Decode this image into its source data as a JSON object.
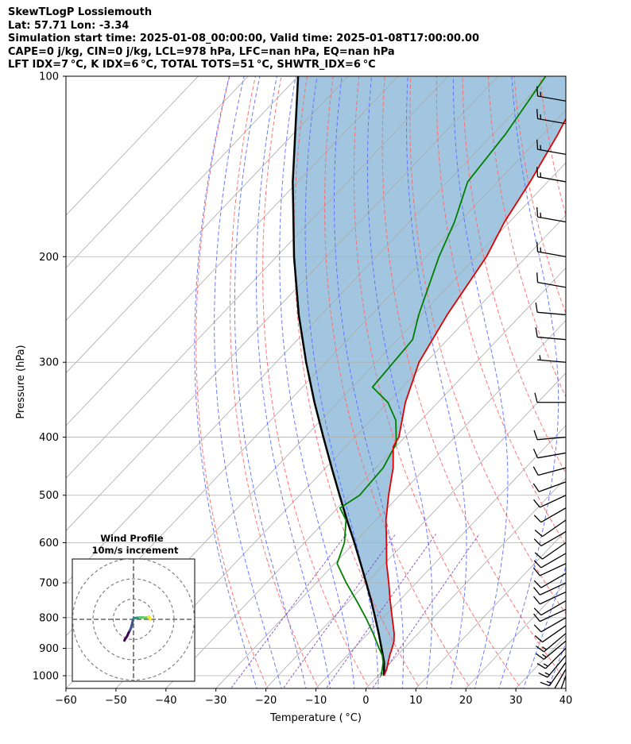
{
  "header": {
    "line1": "SkewTLogP Lossiemouth",
    "line2": "Lat: 57.71   Lon: -3.34",
    "line3": "Simulation start time: 2025-01-08_00:00:00, Valid time: 2025-01-08T17:00:00.00",
    "line4": "CAPE=0 j/kg, CIN=0 j/kg, LCL=978 hPa, LFC=nan hPa, EQ=nan hPa",
    "line5": "LFT IDX=7 °C, K IDX=6 °C, TOTAL TOTS=51 °C, SHWTR_IDX=6 °C"
  },
  "chart_data": {
    "type": "skew-t log-p",
    "xlabel": "Temperature ( °C)",
    "ylabel": "Pressure (hPa)",
    "xlim": [
      -60,
      40
    ],
    "ylim": [
      1050,
      100
    ],
    "y_scale": "log",
    "x_ticks": [
      -60,
      -50,
      -40,
      -30,
      -20,
      -10,
      0,
      10,
      20,
      30,
      40
    ],
    "x_tick_labels": [
      "−60",
      "−50",
      "−40",
      "−30",
      "−20",
      "−10",
      "0",
      "10",
      "20",
      "30",
      "40"
    ],
    "y_ticks": [
      1000,
      900,
      800,
      700,
      600,
      500,
      400,
      300,
      200,
      100
    ],
    "y_tick_labels": [
      "1000",
      "900",
      "800",
      "700",
      "600",
      "500",
      "400",
      "300",
      "200",
      "100"
    ],
    "grid": true,
    "colors": {
      "temperature": "#e00000",
      "dewpoint": "#008000",
      "parcel": "#000000",
      "shade": "#a2c6df",
      "dry_adiabat": "#ff6666",
      "moist_adiabat": "#5a6dff",
      "isotherm": "#aaaaaa",
      "mixing_ratio": "#7b3fbf",
      "barb": "#000000"
    },
    "temperature_profile": [
      {
        "p": 1000,
        "t": 1.2
      },
      {
        "p": 975,
        "t": 0.5
      },
      {
        "p": 950,
        "t": -0.5
      },
      {
        "p": 925,
        "t": -1.5
      },
      {
        "p": 900,
        "t": -2.4
      },
      {
        "p": 875,
        "t": -3.4
      },
      {
        "p": 850,
        "t": -4.8
      },
      {
        "p": 800,
        "t": -8.2
      },
      {
        "p": 750,
        "t": -11.8
      },
      {
        "p": 700,
        "t": -15.5
      },
      {
        "p": 650,
        "t": -19.6
      },
      {
        "p": 600,
        "t": -23.6
      },
      {
        "p": 550,
        "t": -28.0
      },
      {
        "p": 500,
        "t": -32.2
      },
      {
        "p": 450,
        "t": -36.5
      },
      {
        "p": 415,
        "t": -40.5
      },
      {
        "p": 400,
        "t": -41.2
      },
      {
        "p": 350,
        "t": -46.5
      },
      {
        "p": 300,
        "t": -51.4
      },
      {
        "p": 250,
        "t": -54.8
      },
      {
        "p": 200,
        "t": -58.0
      },
      {
        "p": 175,
        "t": -61.0
      },
      {
        "p": 150,
        "t": -63.5
      },
      {
        "p": 125,
        "t": -67.0
      },
      {
        "p": 100,
        "t": -72.0
      }
    ],
    "dewpoint_profile": [
      {
        "p": 1000,
        "t": 0.6
      },
      {
        "p": 975,
        "t": -0.4
      },
      {
        "p": 950,
        "t": -1.5
      },
      {
        "p": 925,
        "t": -3.0
      },
      {
        "p": 900,
        "t": -5.0
      },
      {
        "p": 850,
        "t": -9.0
      },
      {
        "p": 800,
        "t": -13.5
      },
      {
        "p": 750,
        "t": -18.5
      },
      {
        "p": 700,
        "t": -24.0
      },
      {
        "p": 650,
        "t": -29.5
      },
      {
        "p": 600,
        "t": -32.0
      },
      {
        "p": 550,
        "t": -36.0
      },
      {
        "p": 525,
        "t": -39.5
      },
      {
        "p": 500,
        "t": -38.0
      },
      {
        "p": 450,
        "t": -38.5
      },
      {
        "p": 410,
        "t": -40.5
      },
      {
        "p": 375,
        "t": -45.0
      },
      {
        "p": 350,
        "t": -50.0
      },
      {
        "p": 330,
        "t": -56.0
      },
      {
        "p": 300,
        "t": -56.5
      },
      {
        "p": 275,
        "t": -57.0
      },
      {
        "p": 250,
        "t": -60.5
      },
      {
        "p": 200,
        "t": -67.5
      },
      {
        "p": 175,
        "t": -71.0
      },
      {
        "p": 150,
        "t": -76.0
      },
      {
        "p": 125,
        "t": -77.5
      },
      {
        "p": 100,
        "t": -80.5
      }
    ],
    "parcel_profile": [
      {
        "p": 1000,
        "t": 1.2
      },
      {
        "p": 978,
        "t": 0.1
      },
      {
        "p": 950,
        "t": -1.3
      },
      {
        "p": 900,
        "t": -4.5
      },
      {
        "p": 850,
        "t": -7.9
      },
      {
        "p": 800,
        "t": -11.6
      },
      {
        "p": 750,
        "t": -15.6
      },
      {
        "p": 700,
        "t": -20.0
      },
      {
        "p": 650,
        "t": -24.8
      },
      {
        "p": 600,
        "t": -30.0
      },
      {
        "p": 550,
        "t": -35.8
      },
      {
        "p": 500,
        "t": -42.0
      },
      {
        "p": 450,
        "t": -48.8
      },
      {
        "p": 400,
        "t": -56.3
      },
      {
        "p": 350,
        "t": -64.7
      },
      {
        "p": 300,
        "t": -74.0
      },
      {
        "p": 250,
        "t": -84.5
      },
      {
        "p": 200,
        "t": -96.5
      },
      {
        "p": 150,
        "t": -111.0
      },
      {
        "p": 100,
        "t": -130.0
      }
    ],
    "wind_barbs": [
      {
        "p": 1000,
        "speed_kt": 10,
        "dir_deg": 200
      },
      {
        "p": 975,
        "speed_kt": 15,
        "dir_deg": 210
      },
      {
        "p": 950,
        "speed_kt": 15,
        "dir_deg": 215
      },
      {
        "p": 925,
        "speed_kt": 15,
        "dir_deg": 220
      },
      {
        "p": 900,
        "speed_kt": 15,
        "dir_deg": 225
      },
      {
        "p": 875,
        "speed_kt": 15,
        "dir_deg": 230
      },
      {
        "p": 850,
        "speed_kt": 15,
        "dir_deg": 230
      },
      {
        "p": 825,
        "speed_kt": 10,
        "dir_deg": 235
      },
      {
        "p": 800,
        "speed_kt": 10,
        "dir_deg": 240
      },
      {
        "p": 775,
        "speed_kt": 10,
        "dir_deg": 245
      },
      {
        "p": 750,
        "speed_kt": 10,
        "dir_deg": 240
      },
      {
        "p": 725,
        "speed_kt": 10,
        "dir_deg": 245
      },
      {
        "p": 700,
        "speed_kt": 10,
        "dir_deg": 245
      },
      {
        "p": 675,
        "speed_kt": 10,
        "dir_deg": 240
      },
      {
        "p": 650,
        "speed_kt": 10,
        "dir_deg": 245
      },
      {
        "p": 625,
        "speed_kt": 10,
        "dir_deg": 240
      },
      {
        "p": 600,
        "speed_kt": 10,
        "dir_deg": 235
      },
      {
        "p": 575,
        "speed_kt": 10,
        "dir_deg": 240
      },
      {
        "p": 550,
        "speed_kt": 10,
        "dir_deg": 235
      },
      {
        "p": 525,
        "speed_kt": 10,
        "dir_deg": 240
      },
      {
        "p": 500,
        "speed_kt": 10,
        "dir_deg": 245
      },
      {
        "p": 475,
        "speed_kt": 10,
        "dir_deg": 250
      },
      {
        "p": 450,
        "speed_kt": 10,
        "dir_deg": 255
      },
      {
        "p": 425,
        "speed_kt": 10,
        "dir_deg": 260
      },
      {
        "p": 400,
        "speed_kt": 10,
        "dir_deg": 265
      },
      {
        "p": 350,
        "speed_kt": 10,
        "dir_deg": 270
      },
      {
        "p": 300,
        "speed_kt": 5,
        "dir_deg": 275
      },
      {
        "p": 275,
        "speed_kt": 10,
        "dir_deg": 275
      },
      {
        "p": 250,
        "speed_kt": 10,
        "dir_deg": 275
      },
      {
        "p": 225,
        "speed_kt": 10,
        "dir_deg": 280
      },
      {
        "p": 200,
        "speed_kt": 15,
        "dir_deg": 280
      },
      {
        "p": 175,
        "speed_kt": 15,
        "dir_deg": 280
      },
      {
        "p": 150,
        "speed_kt": 15,
        "dir_deg": 280
      },
      {
        "p": 135,
        "speed_kt": 15,
        "dir_deg": 280
      },
      {
        "p": 120,
        "speed_kt": 15,
        "dir_deg": 280
      },
      {
        "p": 110,
        "speed_kt": 15,
        "dir_deg": 280
      }
    ],
    "hodograph": {
      "title": "Wind Profile",
      "subtitle": "10m/s increment",
      "ring_step_ms": 10,
      "max_ms": 30,
      "points_uv_ms": [
        [
          -4.5,
          -10.5
        ],
        [
          -4.2,
          -9.8
        ],
        [
          -3.6,
          -9.0
        ],
        [
          -3.0,
          -8.0
        ],
        [
          -2.5,
          -6.8
        ],
        [
          -1.8,
          -5.5
        ],
        [
          -1.2,
          -4.2
        ],
        [
          -0.9,
          -3.0
        ],
        [
          -0.6,
          -1.8
        ],
        [
          -0.3,
          -0.6
        ],
        [
          0.0,
          0.3
        ],
        [
          0.5,
          0.6
        ],
        [
          1.2,
          0.7
        ],
        [
          2.0,
          0.8
        ],
        [
          3.0,
          0.9
        ],
        [
          4.0,
          1.0
        ],
        [
          4.8,
          0.9
        ],
        [
          5.5,
          0.8
        ],
        [
          6.5,
          0.9
        ],
        [
          7.2,
          1.2
        ],
        [
          7.6,
          1.5
        ],
        [
          8.0,
          0.8
        ],
        [
          8.4,
          0.3
        ],
        [
          8.0,
          -0.1
        ]
      ],
      "colormap": [
        "#440154",
        "#3b528b",
        "#21918c",
        "#5ec962",
        "#fde725"
      ]
    }
  }
}
